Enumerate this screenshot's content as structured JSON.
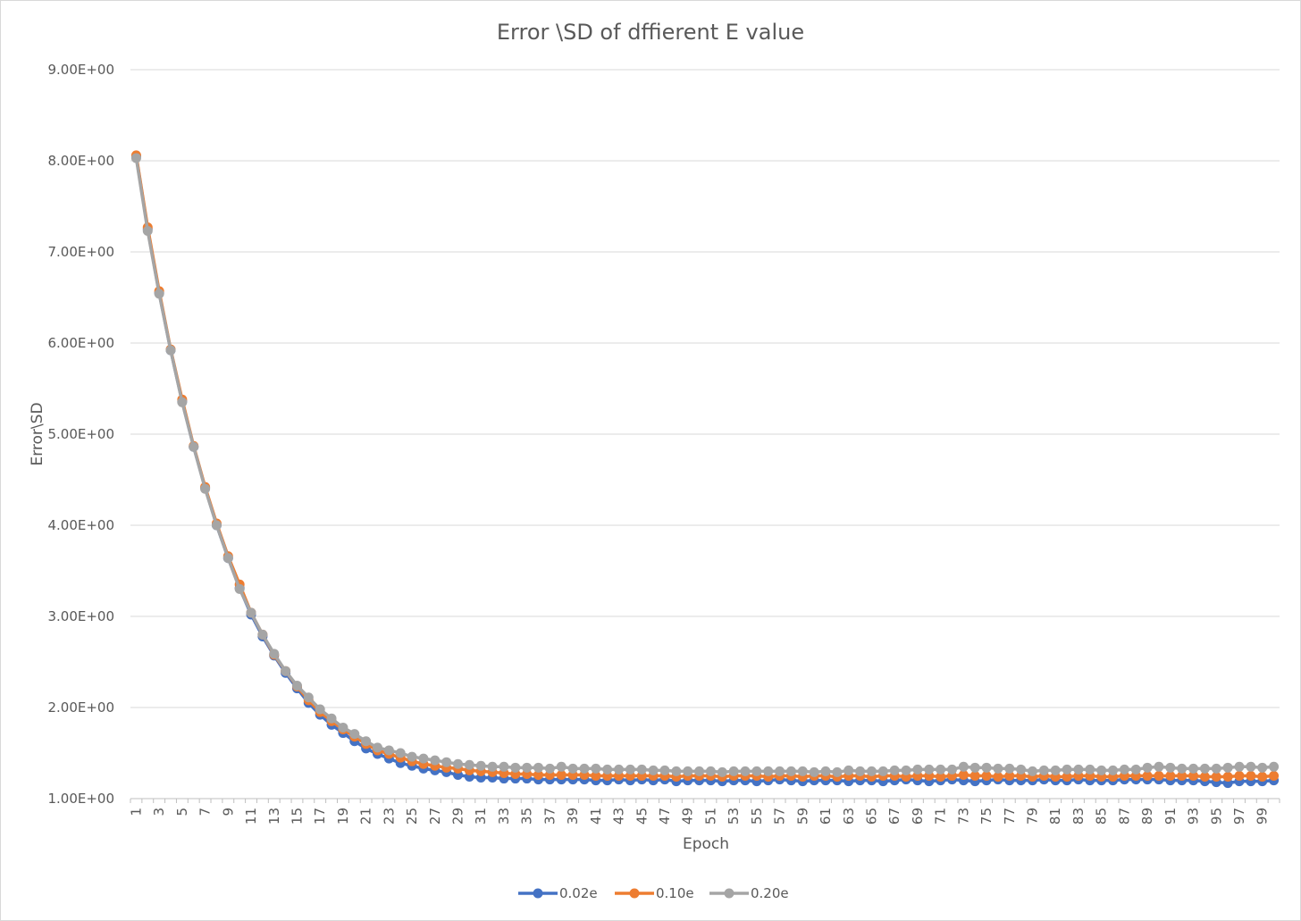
{
  "chart_data": {
    "type": "line",
    "title": "Error \\SD of dffierent E value",
    "xlabel": "Epoch",
    "ylabel": "Error\\SD",
    "ylim": [
      1.0,
      9.0
    ],
    "yticks": [
      "1.00E+00",
      "2.00E+00",
      "3.00E+00",
      "4.00E+00",
      "5.00E+00",
      "6.00E+00",
      "7.00E+00",
      "8.00E+00",
      "9.00E+00"
    ],
    "x": [
      1,
      2,
      3,
      4,
      5,
      6,
      7,
      8,
      9,
      10,
      11,
      12,
      13,
      14,
      15,
      16,
      17,
      18,
      19,
      20,
      21,
      22,
      23,
      24,
      25,
      26,
      27,
      28,
      29,
      30,
      31,
      32,
      33,
      34,
      35,
      36,
      37,
      38,
      39,
      40,
      41,
      42,
      43,
      44,
      45,
      46,
      47,
      48,
      49,
      50,
      51,
      52,
      53,
      54,
      55,
      56,
      57,
      58,
      59,
      60,
      61,
      62,
      63,
      64,
      65,
      66,
      67,
      68,
      69,
      70,
      71,
      72,
      73,
      74,
      75,
      76,
      77,
      78,
      79,
      80,
      81,
      82,
      83,
      84,
      85,
      86,
      87,
      88,
      89,
      90,
      91,
      92,
      93,
      94,
      95,
      96,
      97,
      98,
      99,
      100
    ],
    "xtick_labels": [
      "1",
      "3",
      "5",
      "7",
      "9",
      "11",
      "13",
      "15",
      "17",
      "19",
      "21",
      "23",
      "25",
      "27",
      "29",
      "31",
      "33",
      "35",
      "37",
      "39",
      "41",
      "43",
      "45",
      "47",
      "49",
      "51",
      "53",
      "55",
      "57",
      "59",
      "61",
      "63",
      "65",
      "67",
      "69",
      "71",
      "73",
      "75",
      "77",
      "79",
      "81",
      "83",
      "85",
      "87",
      "89",
      "91",
      "93",
      "95",
      "97",
      "99"
    ],
    "grid": true,
    "legend": "bottom",
    "series": [
      {
        "name": "0.02e",
        "color": "#4472C4",
        "values": [
          8.05,
          7.25,
          6.55,
          5.92,
          5.36,
          4.86,
          4.41,
          4.0,
          3.64,
          3.31,
          3.02,
          2.78,
          2.57,
          2.38,
          2.21,
          2.05,
          1.92,
          1.81,
          1.72,
          1.63,
          1.55,
          1.49,
          1.44,
          1.39,
          1.36,
          1.33,
          1.31,
          1.29,
          1.26,
          1.24,
          1.23,
          1.23,
          1.22,
          1.22,
          1.22,
          1.21,
          1.21,
          1.21,
          1.21,
          1.21,
          1.2,
          1.2,
          1.21,
          1.2,
          1.21,
          1.2,
          1.21,
          1.19,
          1.2,
          1.2,
          1.2,
          1.19,
          1.2,
          1.2,
          1.19,
          1.2,
          1.21,
          1.2,
          1.19,
          1.2,
          1.2,
          1.2,
          1.19,
          1.2,
          1.2,
          1.19,
          1.2,
          1.21,
          1.2,
          1.19,
          1.2,
          1.21,
          1.2,
          1.19,
          1.2,
          1.21,
          1.2,
          1.2,
          1.2,
          1.21,
          1.2,
          1.2,
          1.21,
          1.2,
          1.2,
          1.2,
          1.21,
          1.21,
          1.21,
          1.21,
          1.2,
          1.2,
          1.2,
          1.19,
          1.18,
          1.17,
          1.19,
          1.19,
          1.19,
          1.2
        ]
      },
      {
        "name": "0.10e",
        "color": "#ED7D31",
        "values": [
          8.06,
          7.27,
          6.57,
          5.93,
          5.38,
          4.87,
          4.42,
          4.02,
          3.66,
          3.35,
          3.04,
          2.8,
          2.58,
          2.4,
          2.23,
          2.08,
          1.95,
          1.85,
          1.76,
          1.68,
          1.6,
          1.53,
          1.49,
          1.45,
          1.41,
          1.38,
          1.36,
          1.34,
          1.33,
          1.31,
          1.3,
          1.29,
          1.28,
          1.27,
          1.27,
          1.26,
          1.26,
          1.26,
          1.26,
          1.26,
          1.25,
          1.25,
          1.25,
          1.25,
          1.25,
          1.25,
          1.25,
          1.24,
          1.25,
          1.25,
          1.25,
          1.24,
          1.25,
          1.25,
          1.25,
          1.24,
          1.25,
          1.25,
          1.24,
          1.25,
          1.25,
          1.24,
          1.25,
          1.25,
          1.24,
          1.25,
          1.25,
          1.24,
          1.25,
          1.25,
          1.24,
          1.25,
          1.26,
          1.25,
          1.25,
          1.24,
          1.25,
          1.25,
          1.24,
          1.25,
          1.24,
          1.24,
          1.25,
          1.25,
          1.24,
          1.24,
          1.25,
          1.25,
          1.25,
          1.25,
          1.25,
          1.25,
          1.25,
          1.24,
          1.24,
          1.24,
          1.25,
          1.25,
          1.24,
          1.25
        ]
      },
      {
        "name": "0.20e",
        "color": "#A5A5A5",
        "values": [
          8.03,
          7.23,
          6.54,
          5.92,
          5.35,
          4.86,
          4.4,
          4.0,
          3.64,
          3.3,
          3.04,
          2.8,
          2.59,
          2.4,
          2.24,
          2.11,
          1.98,
          1.88,
          1.78,
          1.71,
          1.63,
          1.56,
          1.53,
          1.5,
          1.46,
          1.44,
          1.42,
          1.4,
          1.38,
          1.37,
          1.36,
          1.35,
          1.35,
          1.34,
          1.34,
          1.34,
          1.33,
          1.35,
          1.33,
          1.33,
          1.33,
          1.32,
          1.32,
          1.32,
          1.32,
          1.31,
          1.31,
          1.3,
          1.3,
          1.3,
          1.3,
          1.29,
          1.3,
          1.3,
          1.3,
          1.3,
          1.3,
          1.3,
          1.3,
          1.29,
          1.3,
          1.29,
          1.31,
          1.3,
          1.3,
          1.3,
          1.31,
          1.31,
          1.32,
          1.32,
          1.32,
          1.32,
          1.35,
          1.34,
          1.34,
          1.33,
          1.33,
          1.32,
          1.3,
          1.31,
          1.31,
          1.32,
          1.32,
          1.32,
          1.31,
          1.31,
          1.32,
          1.32,
          1.34,
          1.35,
          1.34,
          1.33,
          1.33,
          1.33,
          1.33,
          1.34,
          1.35,
          1.35,
          1.34,
          1.35
        ]
      }
    ]
  }
}
